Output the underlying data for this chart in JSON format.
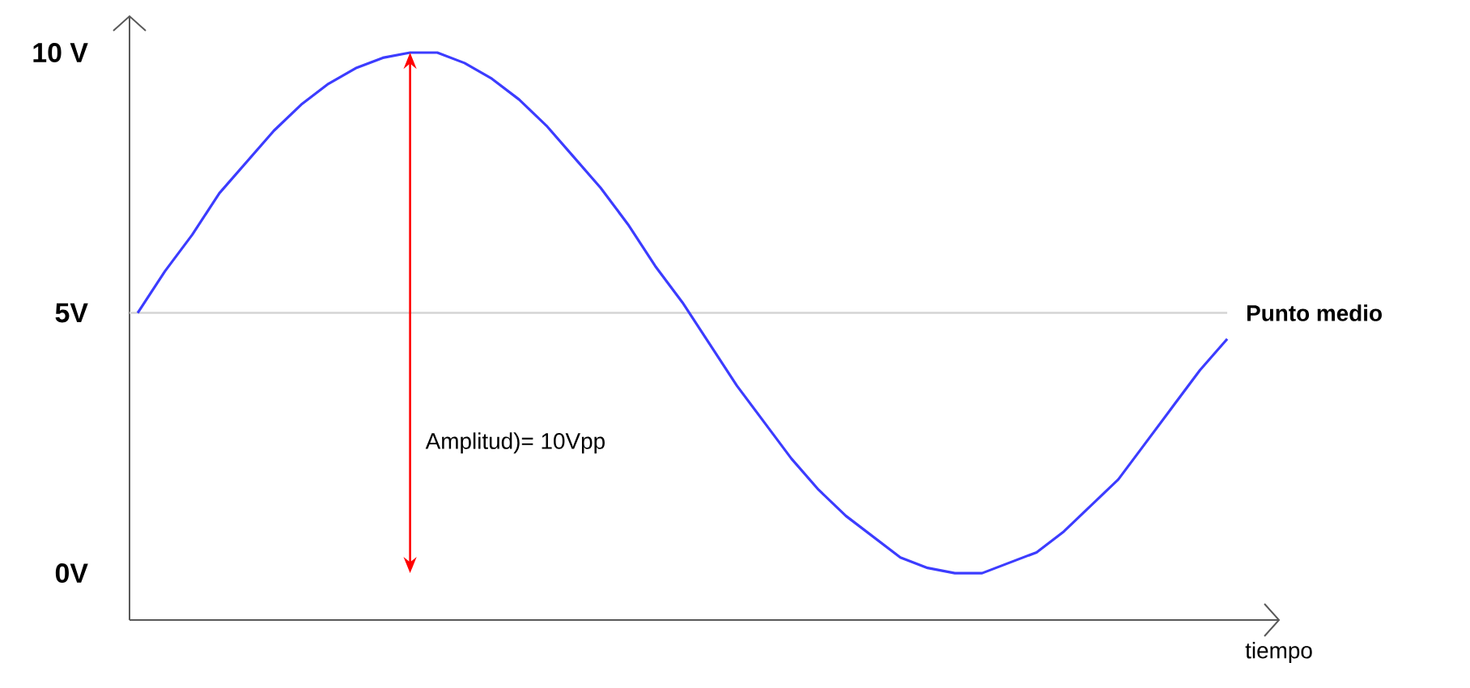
{
  "chart_data": {
    "type": "line",
    "xlabel": "tiempo",
    "categories": [
      null,
      null,
      null,
      null,
      null,
      null,
      null,
      null,
      null,
      null,
      null,
      null,
      null,
      null,
      null,
      null,
      null,
      null,
      null,
      null,
      null,
      null,
      null,
      null,
      null,
      null,
      null,
      null,
      null,
      null,
      null,
      null,
      null,
      null,
      null,
      null,
      null,
      null,
      null,
      null,
      null
    ],
    "values": [
      5.0,
      5.8,
      6.5,
      7.3,
      7.9,
      8.5,
      9.0,
      9.4,
      9.7,
      9.9,
      10.0,
      10.0,
      9.8,
      9.5,
      9.1,
      8.6,
      8.0,
      7.4,
      6.7,
      5.9,
      5.2,
      4.4,
      3.6,
      2.9,
      2.2,
      1.6,
      1.1,
      0.7,
      0.3,
      0.1,
      0.0,
      0.0,
      0.2,
      0.4,
      0.8,
      1.3,
      1.8,
      2.5,
      3.2,
      3.9,
      4.5
    ],
    "color": "#3c3cff",
    "ylim": [
      -0.9,
      10.7
    ],
    "yticks": [
      {
        "value": 0,
        "label": "0V"
      },
      {
        "value": 5,
        "label": "5V"
      },
      {
        "value": 10,
        "label": "10 V"
      }
    ],
    "ref_lines": [
      {
        "axis": "y",
        "value": 5,
        "label": "Punto medio",
        "color": "#d4d4d4"
      }
    ],
    "annotations": [
      "Amplitud)= 10Vpp"
    ],
    "marker": "none",
    "line_style": "solid"
  }
}
